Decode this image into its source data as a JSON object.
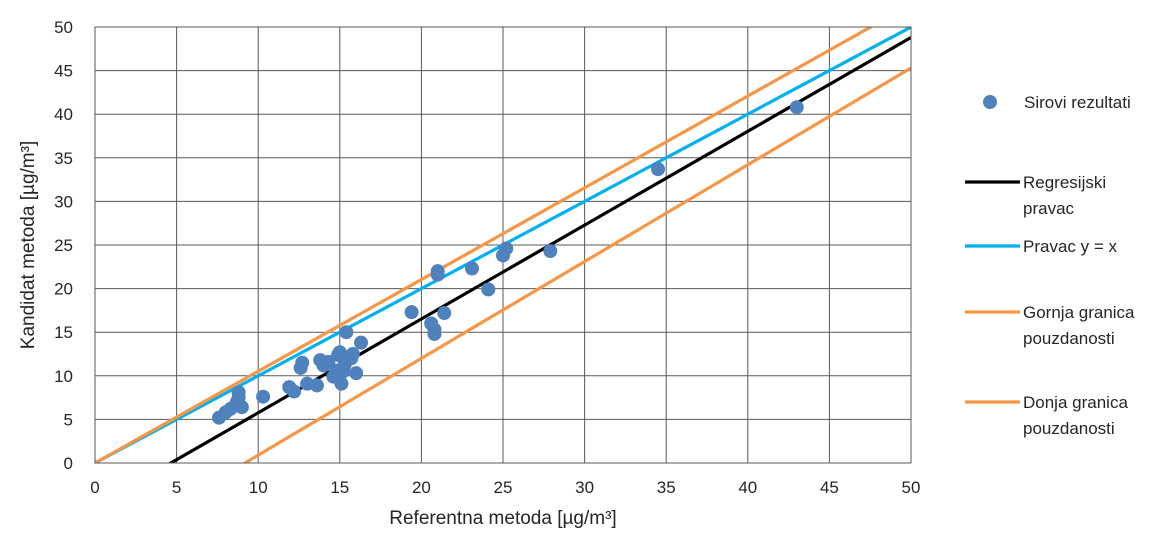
{
  "chart_data": {
    "type": "scatter",
    "xlabel": "Referentna metoda [µg/m³]",
    "ylabel": "Kandidat metoda [µg/m³]",
    "xlim": [
      0,
      50
    ],
    "ylim": [
      0,
      50
    ],
    "xticks": [
      "0",
      "5",
      "10",
      "15",
      "20",
      "25",
      "30",
      "35",
      "40",
      "45",
      "50"
    ],
    "yticks": [
      "0",
      "5",
      "10",
      "15",
      "20",
      "25",
      "30",
      "35",
      "40",
      "45",
      "50"
    ],
    "grid": true,
    "legend_position": "right",
    "series": [
      {
        "name": "Sirovi rezultati",
        "kind": "scatter",
        "color": "#4f81bd",
        "points": [
          [
            7.6,
            5.2
          ],
          [
            8.0,
            5.8
          ],
          [
            8.3,
            6.2
          ],
          [
            8.6,
            6.6
          ],
          [
            8.7,
            7.0
          ],
          [
            8.8,
            7.5
          ],
          [
            8.8,
            8.1
          ],
          [
            9.0,
            6.4
          ],
          [
            10.3,
            7.6
          ],
          [
            11.9,
            8.7
          ],
          [
            12.2,
            8.2
          ],
          [
            12.6,
            10.9
          ],
          [
            12.7,
            11.5
          ],
          [
            13.0,
            9.1
          ],
          [
            13.6,
            8.9
          ],
          [
            13.8,
            11.8
          ],
          [
            14.0,
            11.2
          ],
          [
            14.3,
            11.6
          ],
          [
            14.6,
            9.9
          ],
          [
            14.8,
            10.6
          ],
          [
            14.9,
            12.4
          ],
          [
            15.0,
            12.7
          ],
          [
            15.1,
            9.1
          ],
          [
            15.2,
            10.5
          ],
          [
            15.3,
            11.3
          ],
          [
            15.4,
            15.0
          ],
          [
            15.7,
            12.0
          ],
          [
            15.8,
            12.5
          ],
          [
            16.0,
            10.3
          ],
          [
            16.3,
            13.8
          ],
          [
            19.4,
            17.3
          ],
          [
            20.6,
            16.0
          ],
          [
            20.8,
            15.3
          ],
          [
            20.8,
            14.8
          ],
          [
            21.0,
            21.6
          ],
          [
            21.0,
            22.0
          ],
          [
            21.4,
            17.2
          ],
          [
            23.1,
            22.3
          ],
          [
            24.1,
            19.9
          ],
          [
            25.0,
            23.8
          ],
          [
            25.2,
            24.6
          ],
          [
            27.9,
            24.3
          ],
          [
            34.5,
            33.7
          ],
          [
            43.0,
            40.8
          ]
        ]
      },
      {
        "name": "Regresijski pravac",
        "kind": "line",
        "color": "#000000",
        "x": [
          0,
          50
        ],
        "y": [
          -5.0,
          48.8
        ]
      },
      {
        "name": "Pravac y = x",
        "kind": "line",
        "color": "#00b0f0",
        "x": [
          0,
          50
        ],
        "y": [
          0,
          50
        ]
      },
      {
        "name": "Gornja granica pouzdanosti",
        "kind": "line",
        "color": "#f79646",
        "x": [
          0,
          50
        ],
        "y": [
          0,
          52.6
        ]
      },
      {
        "name": "Donja granica pouzdanosti",
        "kind": "line",
        "color": "#f79646",
        "x": [
          0,
          50
        ],
        "y": [
          -10.2,
          45.3
        ]
      }
    ]
  }
}
